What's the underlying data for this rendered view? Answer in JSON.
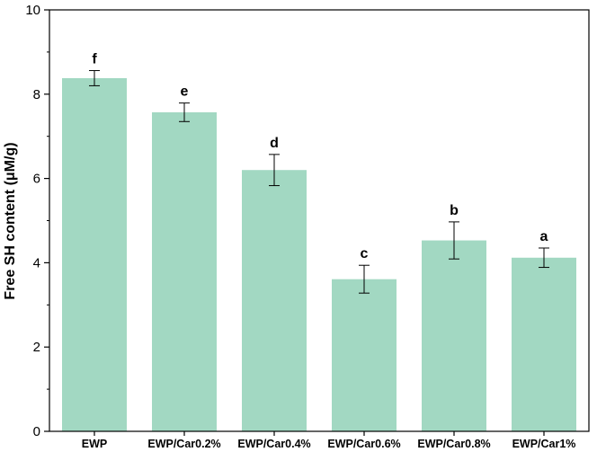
{
  "chart_data": {
    "type": "bar",
    "categories": [
      "EWP",
      "EWP/Car0.2%",
      "EWP/Car0.4%",
      "EWP/Car0.6%",
      "EWP/Car0.8%",
      "EWP/Car1%"
    ],
    "values": [
      8.38,
      7.57,
      6.2,
      3.61,
      4.53,
      4.12
    ],
    "errors": [
      0.18,
      0.22,
      0.37,
      0.33,
      0.44,
      0.23
    ],
    "significance": [
      "f",
      "e",
      "d",
      "c",
      "b",
      "a"
    ],
    "ylabel": "Free SH content (μM/g)",
    "xlabel": "",
    "ylim": [
      0,
      10
    ],
    "yticks": [
      0,
      2,
      4,
      6,
      8,
      10
    ],
    "bar_color": "#a2d8c2",
    "grid": false,
    "legend": "none"
  }
}
